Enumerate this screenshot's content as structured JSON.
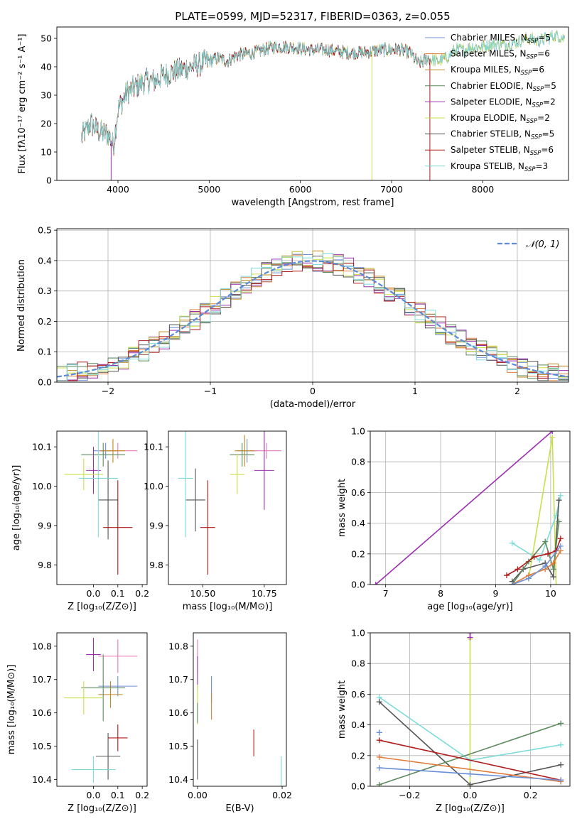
{
  "colors": {
    "c_miles": "#6b8fd6",
    "s_miles": "#e07b3a",
    "k_miles": "#c08a1e",
    "c_elodie": "#5e8a5e",
    "s_elodie": "#9a2fb0",
    "k_elodie": "#c9e04a",
    "c_stelib": "#555555",
    "s_stelib": "#b01a1a",
    "k_stelib": "#7fdada",
    "pink": "#e87ab8",
    "normal": "#5b8bd8"
  },
  "chart_data": [
    {
      "id": "spectrum",
      "type": "line",
      "title": "PLATE=0599, MJD=52317, FIBERID=0363, z=0.055",
      "xlabel": "wavelength [Angstrom, rest frame]",
      "ylabel": "Flux [fλ10⁻¹⁷ erg cm⁻² s⁻¹ A⁻¹]",
      "xlim": [
        3330,
        8940
      ],
      "ylim": [
        0,
        54
      ],
      "xticks": [
        4000,
        5000,
        6000,
        7000,
        8000
      ],
      "xtick_labels": [
        "4000",
        "5000",
        "6000",
        "7000",
        "8000"
      ],
      "yticks": [
        0,
        10,
        20,
        30,
        40,
        50
      ],
      "ytick_labels": [
        "0",
        "10",
        "20",
        "30",
        "40",
        "50"
      ],
      "continuum_x": [
        3600,
        3700,
        3800,
        3900,
        3950,
        4000,
        4100,
        4200,
        4300,
        4400,
        4500,
        4700,
        4900,
        5100,
        5200,
        5300,
        5500,
        5700,
        5900,
        6100,
        6300,
        6500,
        6700,
        6900,
        7000,
        7100,
        7200,
        7300,
        7400,
        7500,
        7600,
        7700,
        7800,
        7900,
        8000,
        8100,
        8200,
        8300,
        8400,
        8500,
        8600,
        8700,
        8800,
        8900
      ],
      "continuum_y": [
        15,
        20,
        17,
        16,
        12,
        25,
        31,
        33,
        35,
        35,
        37,
        39,
        41,
        43,
        42,
        44,
        45,
        47,
        47,
        46,
        46,
        45,
        45,
        46,
        46,
        46,
        45,
        41,
        43,
        42,
        43,
        46,
        46,
        47,
        47,
        48,
        48,
        48,
        49,
        50,
        49,
        50,
        51,
        50
      ],
      "spikes": [
        {
          "x": 3925,
          "y": 0,
          "series": 4
        },
        {
          "x": 6785,
          "y": 0,
          "series": 5
        },
        {
          "x": 7420,
          "y": 0,
          "series": 7
        }
      ],
      "legend_position": "upper right",
      "legend": [
        {
          "label": "Chabrier MILES, N",
          "sub": "SSP",
          "suffix": "=5",
          "color": "c_miles"
        },
        {
          "label": "Salpeter MILES, N",
          "sub": "SSP",
          "suffix": "=6",
          "color": "s_miles"
        },
        {
          "label": "Kroupa MILES, N",
          "sub": "SSP",
          "suffix": "=6",
          "color": "k_miles"
        },
        {
          "label": "Chabrier ELODIE, N",
          "sub": "SSP",
          "suffix": "=5",
          "color": "c_elodie"
        },
        {
          "label": "Salpeter ELODIE, N",
          "sub": "SSP",
          "suffix": "=2",
          "color": "s_elodie"
        },
        {
          "label": "Kroupa ELODIE, N",
          "sub": "SSP",
          "suffix": "=2",
          "color": "k_elodie"
        },
        {
          "label": "Chabrier STELIB, N",
          "sub": "SSP",
          "suffix": "=5",
          "color": "c_stelib"
        },
        {
          "label": "Salpeter STELIB, N",
          "sub": "SSP",
          "suffix": "=6",
          "color": "s_stelib"
        },
        {
          "label": "Kroupa STELIB, N",
          "sub": "SSP",
          "suffix": "=3",
          "color": "k_stelib"
        }
      ]
    },
    {
      "id": "residuals",
      "type": "line",
      "xlabel": "(data-model)/error",
      "ylabel": "Normed distribution",
      "xlim": [
        -2.5,
        2.5
      ],
      "ylim": [
        0,
        0.505
      ],
      "xticks": [
        -2,
        -1,
        0,
        1,
        2
      ],
      "xtick_labels": [
        "−2",
        "−1",
        "0",
        "1",
        "2"
      ],
      "yticks": [
        0,
        0.1,
        0.2,
        0.3,
        0.4,
        0.5
      ],
      "ytick_labels": [
        "0.0",
        "0.1",
        "0.2",
        "0.3",
        "0.4",
        "0.5"
      ],
      "grid": true,
      "legend": {
        "label": "𝒩(0, 1)",
        "position": "upper right"
      },
      "bin_width": 0.1
    },
    {
      "id": "age_vs_Z",
      "type": "scatter",
      "xlabel": "Z [log₁₀(Z/Z⊙)]",
      "ylabel": "age  [log₁₀(age/yr)]",
      "xlim": [
        -0.15,
        0.22
      ],
      "ylim": [
        9.75,
        10.14
      ],
      "xticks": [
        0.0,
        0.1,
        0.2
      ],
      "xtick_labels": [
        "0.0",
        "0.1",
        "0.2"
      ],
      "yticks": [
        9.8,
        9.9,
        10.0,
        10.1
      ],
      "ytick_labels": [
        "9.8",
        "9.9",
        "10.0",
        "10.1"
      ],
      "points": [
        {
          "x": 0.05,
          "y": 10.09,
          "xerr": 0.05,
          "yerr": 0.02,
          "color": "c_miles"
        },
        {
          "x": 0.1,
          "y": 10.09,
          "xerr": 0.08,
          "yerr": 0.02,
          "color": "pink"
        },
        {
          "x": 0.08,
          "y": 10.09,
          "xerr": 0.05,
          "yerr": 0.03,
          "color": "k_miles"
        },
        {
          "x": 0.04,
          "y": 10.08,
          "xerr": 0.09,
          "yerr": 0.03,
          "color": "c_elodie"
        },
        {
          "x": 0.0,
          "y": 10.04,
          "xerr": 0.03,
          "yerr": 0.06,
          "color": "s_elodie"
        },
        {
          "x": -0.04,
          "y": 10.03,
          "xerr": 0.08,
          "yerr": 0.04,
          "color": "k_elodie"
        },
        {
          "x": 0.06,
          "y": 9.965,
          "xerr": 0.04,
          "yerr": 0.1,
          "color": "c_stelib"
        },
        {
          "x": 0.1,
          "y": 9.895,
          "xerr": 0.06,
          "yerr": 0.12,
          "color": "s_stelib"
        },
        {
          "x": 0.02,
          "y": 10.02,
          "xerr": 0.08,
          "yerr": 0.15,
          "color": "k_stelib"
        }
      ]
    },
    {
      "id": "age_vs_mass",
      "type": "scatter",
      "xlabel": "mass [log₁₀(M/M⊙)]",
      "xlim": [
        10.36,
        10.84
      ],
      "ylim": [
        9.75,
        10.14
      ],
      "xticks": [
        10.5,
        10.75
      ],
      "xtick_labels": [
        "10.50",
        "10.75"
      ],
      "yticks": [
        9.8,
        9.9,
        10.0,
        10.1
      ],
      "ytick_labels": [
        "9.8",
        "9.9",
        "10.0",
        "10.1"
      ],
      "points": [
        {
          "x": 10.68,
          "y": 10.09,
          "xerr": 0.04,
          "yerr": 0.03,
          "color": "c_miles"
        },
        {
          "x": 10.76,
          "y": 10.09,
          "xerr": 0.06,
          "yerr": 0.02,
          "color": "pink"
        },
        {
          "x": 10.67,
          "y": 10.09,
          "xerr": 0.04,
          "yerr": 0.04,
          "color": "k_miles"
        },
        {
          "x": 10.66,
          "y": 10.08,
          "xerr": 0.05,
          "yerr": 0.03,
          "color": "c_elodie"
        },
        {
          "x": 10.75,
          "y": 10.04,
          "xerr": 0.04,
          "yerr": 0.1,
          "color": "s_elodie"
        },
        {
          "x": 10.64,
          "y": 10.03,
          "xerr": 0.03,
          "yerr": 0.05,
          "color": "k_elodie"
        },
        {
          "x": 10.47,
          "y": 9.965,
          "xerr": 0.04,
          "yerr": 0.08,
          "color": "c_stelib"
        },
        {
          "x": 10.52,
          "y": 9.895,
          "xerr": 0.03,
          "yerr": 0.12,
          "color": "s_stelib"
        },
        {
          "x": 10.43,
          "y": 10.02,
          "xerr": 0.03,
          "yerr": 0.15,
          "color": "k_stelib"
        }
      ]
    },
    {
      "id": "weight_vs_age",
      "type": "line",
      "xlabel": "age  [log₁₀(age/yr)]",
      "ylabel": "mass weight",
      "xlim": [
        6.72,
        10.35
      ],
      "ylim": [
        0,
        1.0
      ],
      "xticks": [
        7,
        8,
        9,
        10
      ],
      "xtick_labels": [
        "7",
        "8",
        "9",
        "10"
      ],
      "yticks": [
        0,
        0.2,
        0.4,
        0.6,
        0.8,
        1.0
      ],
      "ytick_labels": [
        "0.0",
        "0.2",
        "0.4",
        "0.6",
        "0.8",
        "1.0"
      ],
      "grid": true,
      "series": [
        {
          "color": "s_elodie",
          "x": [
            6.82,
            10.03
          ],
          "y": [
            0.0,
            1.0
          ]
        },
        {
          "color": "k_elodie",
          "x": [
            9.6,
            10.03,
            10.1
          ],
          "y": [
            0.04,
            0.96,
            0.0
          ]
        },
        {
          "color": "k_stelib",
          "x": [
            9.3,
            9.8,
            10.1,
            10.18
          ],
          "y": [
            0.27,
            0.16,
            0.45,
            0.58
          ]
        },
        {
          "color": "c_stelib",
          "x": [
            9.3,
            9.5,
            9.9,
            10.05,
            10.15
          ],
          "y": [
            0.02,
            0.1,
            0.14,
            0.05,
            0.55
          ]
        },
        {
          "color": "c_elodie",
          "x": [
            9.3,
            9.6,
            9.9,
            10.05,
            10.15
          ],
          "y": [
            0.0,
            0.15,
            0.28,
            0.1,
            0.41
          ]
        },
        {
          "color": "s_stelib",
          "x": [
            9.2,
            9.4,
            9.7,
            9.95,
            10.1,
            10.18
          ],
          "y": [
            0.06,
            0.1,
            0.18,
            0.2,
            0.22,
            0.3
          ]
        },
        {
          "color": "s_miles",
          "x": [
            9.3,
            9.6,
            9.9,
            10.05,
            10.18
          ],
          "y": [
            0.0,
            0.06,
            0.1,
            0.14,
            0.22
          ]
        },
        {
          "color": "c_miles",
          "x": [
            9.3,
            9.6,
            9.9,
            10.18
          ],
          "y": [
            0.0,
            0.04,
            0.12,
            0.25
          ]
        }
      ]
    },
    {
      "id": "mass_vs_Z",
      "type": "scatter",
      "xlabel": "Z [log₁₀(Z/Z⊙)]",
      "ylabel": "mass [log₁₀(M/M⊙)]",
      "xlim": [
        -0.15,
        0.22
      ],
      "ylim": [
        10.38,
        10.84
      ],
      "xticks": [
        0.0,
        0.1,
        0.2
      ],
      "xtick_labels": [
        "0.0",
        "0.1",
        "0.2"
      ],
      "yticks": [
        10.4,
        10.5,
        10.6,
        10.7,
        10.8
      ],
      "ytick_labels": [
        "10.4",
        "10.5",
        "10.6",
        "10.7",
        "10.8"
      ],
      "points": [
        {
          "x": 0.1,
          "y": 10.68,
          "xerr": 0.08,
          "yerr": 0.03,
          "color": "c_miles"
        },
        {
          "x": 0.1,
          "y": 10.77,
          "xerr": 0.08,
          "yerr": 0.05,
          "color": "pink"
        },
        {
          "x": 0.07,
          "y": 10.655,
          "xerr": 0.05,
          "yerr": 0.04,
          "color": "k_miles"
        },
        {
          "x": 0.04,
          "y": 10.675,
          "xerr": 0.09,
          "yerr": 0.1,
          "color": "c_elodie"
        },
        {
          "x": 0.0,
          "y": 10.775,
          "xerr": 0.03,
          "yerr": 0.05,
          "color": "s_elodie"
        },
        {
          "x": -0.04,
          "y": 10.645,
          "xerr": 0.08,
          "yerr": 0.05,
          "color": "k_elodie"
        },
        {
          "x": 0.06,
          "y": 10.47,
          "xerr": 0.05,
          "yerr": 0.07,
          "color": "c_stelib"
        },
        {
          "x": 0.1,
          "y": 10.525,
          "xerr": 0.04,
          "yerr": 0.04,
          "color": "s_stelib"
        },
        {
          "x": 0.0,
          "y": 10.43,
          "xerr": 0.09,
          "yerr": 0.04,
          "color": "k_stelib"
        }
      ]
    },
    {
      "id": "mass_vs_ebv",
      "type": "scatter",
      "xlabel": "E(B-V)",
      "xlim": [
        -0.001,
        0.021
      ],
      "ylim": [
        10.38,
        10.84
      ],
      "xticks": [
        0.0,
        0.02
      ],
      "xtick_labels": [
        "0.00",
        "0.02"
      ],
      "yticks": [
        10.4,
        10.5,
        10.6,
        10.7,
        10.8
      ],
      "ytick_labels": [
        "10.4",
        "10.5",
        "10.6",
        "10.7",
        "10.8"
      ],
      "points": [
        {
          "x": 0.0,
          "y": 10.77,
          "yerr": 0.05,
          "color": "pink"
        },
        {
          "x": 0.0,
          "y": 10.72,
          "yerr": 0.05,
          "color": "s_elodie"
        },
        {
          "x": 0.0,
          "y": 10.625,
          "yerr": 0.06,
          "color": "k_elodie"
        },
        {
          "x": 0.0,
          "y": 10.6,
          "yerr": 0.03,
          "color": "c_elodie"
        },
        {
          "x": 0.0,
          "y": 10.46,
          "yerr": 0.06,
          "color": "c_stelib"
        },
        {
          "x": 0.0033,
          "y": 10.67,
          "yerr": 0.04,
          "color": "c_miles"
        },
        {
          "x": 0.0033,
          "y": 10.62,
          "yerr": 0.04,
          "color": "s_miles"
        },
        {
          "x": 0.0133,
          "y": 10.51,
          "yerr": 0.04,
          "color": "s_stelib"
        },
        {
          "x": 0.0198,
          "y": 10.42,
          "yerr": 0.05,
          "color": "k_stelib"
        }
      ]
    },
    {
      "id": "weight_vs_Z",
      "type": "line",
      "xlabel": "Z [log₁₀(Z/Z⊙)]",
      "ylabel": "mass weight",
      "xlim": [
        -0.33,
        0.33
      ],
      "ylim": [
        0,
        1.0
      ],
      "xticks": [
        -0.2,
        0.0,
        0.2
      ],
      "xtick_labels": [
        "−0.2",
        "0.0",
        "0.2"
      ],
      "yticks": [
        0,
        0.2,
        0.4,
        0.6,
        0.8,
        1.0
      ],
      "ytick_labels": [
        "0.0",
        "0.2",
        "0.4",
        "0.6",
        "0.8",
        "1.0"
      ],
      "grid": true,
      "series": [
        {
          "color": "k_elodie",
          "x": [
            0.0,
            0.0
          ],
          "y": [
            0.0,
            0.96
          ]
        },
        {
          "color": "s_elodie",
          "x": [
            0.0,
            0.0
          ],
          "y": [
            0.97,
            1.0
          ]
        },
        {
          "color": "k_stelib",
          "x": [
            -0.3,
            0.0,
            0.3
          ],
          "y": [
            0.58,
            0.17,
            0.27
          ]
        },
        {
          "color": "c_stelib",
          "x": [
            -0.3,
            0.0,
            0.3
          ],
          "y": [
            0.55,
            0.01,
            0.14
          ]
        },
        {
          "color": "c_elodie",
          "x": [
            -0.3,
            0.3
          ],
          "y": [
            0.01,
            0.41
          ]
        },
        {
          "color": "s_stelib",
          "x": [
            -0.3,
            0.3
          ],
          "y": [
            0.3,
            0.04
          ]
        },
        {
          "color": "s_miles",
          "x": [
            -0.3,
            0.3
          ],
          "y": [
            0.19,
            0.03
          ]
        },
        {
          "color": "c_miles",
          "x": [
            -0.3,
            0.0,
            0.3
          ],
          "y": [
            0.12,
            0.08,
            0.04
          ]
        },
        {
          "color": "c_miles",
          "x": [
            -0.3,
            -0.3
          ],
          "y": [
            0.35,
            0.35
          ]
        }
      ]
    }
  ]
}
